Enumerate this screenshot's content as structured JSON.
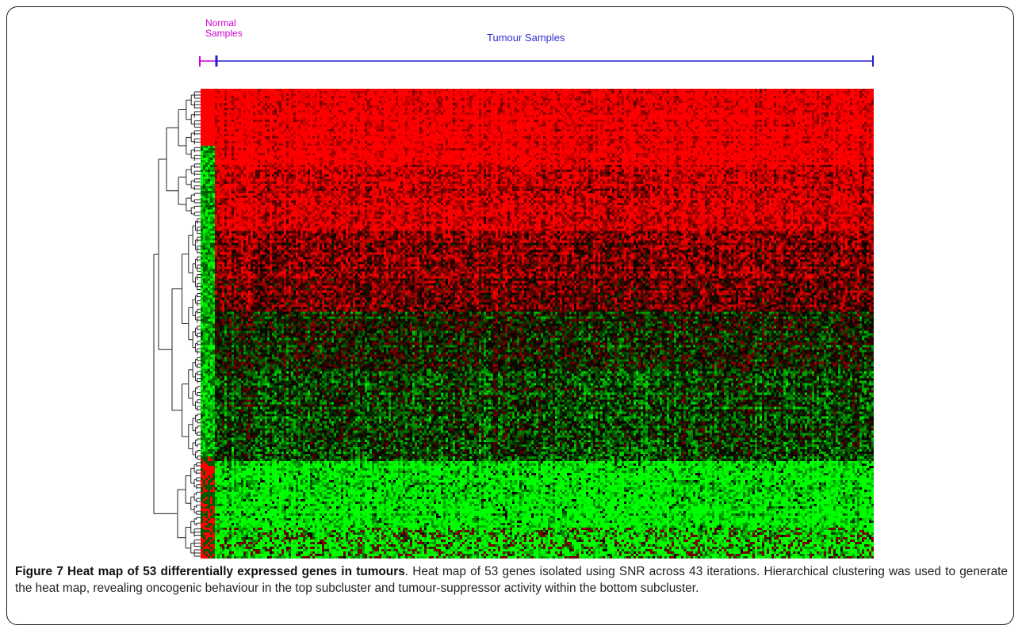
{
  "figure": {
    "normal_label": "Normal Samples",
    "normal_label_line1": "Normal",
    "normal_label_line2": "Samples",
    "tumour_label": "Tumour Samples",
    "caption_title": "Figure 7 Heat map of 53 differentially expressed genes in tumours",
    "caption_body": ". Heat map of 53 genes isolated using SNR across 43 iterations. Hierarchical clustering was used to generate the heat map, revealing oncogenic behaviour in the top subcluster and tumour-suppressor activity within the bottom subcluster."
  },
  "colors": {
    "normal_bracket": "#d000d0",
    "tumour_bracket": "#2020d0",
    "high_expression": "#ff0000",
    "low_expression": "#00ff00",
    "neutral": "#000000"
  },
  "chart_data": {
    "type": "heatmap",
    "title": "",
    "xlabel": "",
    "ylabel": "",
    "column_groups": [
      {
        "name": "Normal Samples"
      },
      {
        "name": "Tumour Samples"
      }
    ],
    "row_clusters": [
      "top subcluster (oncogenic, red)",
      "bottom subcluster (tumour-suppressor, green)"
    ],
    "dendrogram": true
  }
}
